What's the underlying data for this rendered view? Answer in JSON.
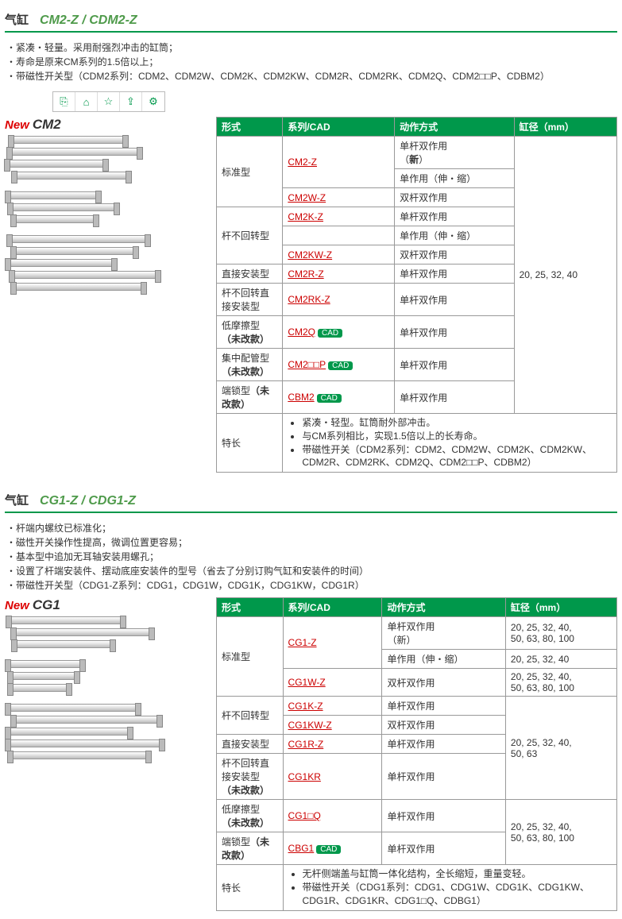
{
  "sections": [
    {
      "title_label": "气缸",
      "title_model": "CM2-Z / CDM2-Z",
      "bullets": [
        "・紧凑・轻量。采用耐强烈冲击的缸筒；",
        "・寿命是原来CM系列的1.5倍以上；",
        "・带磁性开关型（CDM2系列：CDM2、CDM2W、CDM2K、CDM2KW、CDM2R、CDM2RK、CDM2Q、CDM2□□P、CDBM2）"
      ],
      "img_label_new": "New",
      "img_label_tag": "CM2",
      "headers": [
        "形式",
        "系列/CAD",
        "动作方式",
        "缸径（mm）"
      ],
      "bore_span": "20, 25, 32, 40",
      "rows": [
        {
          "type": "标准型",
          "type_rowspan": 3,
          "series": "CM2-Z",
          "link": true,
          "cad": false,
          "action": "单杆双作用<br>（<b>新</b>）",
          "action_rowspan": 1
        },
        {
          "series": "",
          "action": "单作用（伸・缩）"
        },
        {
          "series": "CM2W-Z",
          "link": true,
          "cad": false,
          "action": "双杆双作用"
        },
        {
          "type": "杆不回转型",
          "type_rowspan": 3,
          "series": "CM2K-Z",
          "link": true,
          "cad": false,
          "action": "单杆双作用"
        },
        {
          "series": "",
          "action": "单作用（伸・缩）"
        },
        {
          "series": "CM2KW-Z",
          "link": true,
          "cad": false,
          "action": "双杆双作用"
        },
        {
          "type": "直接安装型",
          "type_rowspan": 1,
          "series": "CM2R-Z",
          "link": true,
          "cad": false,
          "action": "单杆双作用"
        },
        {
          "type": "杆不回转直接安装型",
          "type_rowspan": 1,
          "series": "CM2RK-Z",
          "link": true,
          "cad": false,
          "action": "单杆双作用"
        },
        {
          "type": "低摩擦型<b>（未改款）</b>",
          "type_rowspan": 1,
          "series": "CM2Q",
          "link": true,
          "cad": true,
          "action": "单杆双作用"
        },
        {
          "type": "集中配管型<b>（未改款）</b>",
          "type_rowspan": 1,
          "series": "CM2□□P",
          "link": true,
          "cad": true,
          "action": "单杆双作用"
        },
        {
          "type": "端锁型<b>（未改款）</b>",
          "type_rowspan": 1,
          "series": "CBM2",
          "link": true,
          "cad": true,
          "action": "单杆双作用"
        }
      ],
      "features_label": "特长",
      "features": [
        "紧凑・轻型。缸筒耐外部冲击。",
        "与CM系列相比，实现1.5倍以上的长寿命。",
        "带磁性开关（CDM2系列：CDM2、CDM2W、CDM2K、CDM2KW、CDM2R、CDM2RK、CDM2Q、CDM2□□P、CDBM2）"
      ]
    },
    {
      "title_label": "气缸",
      "title_model": "CG1-Z / CDG1-Z",
      "bullets": [
        "・杆端内螺纹已标准化；",
        "・磁性开关操作性提高，微调位置更容易；",
        "・基本型中追加无耳轴安装用螺孔；",
        "・设置了杆端安装件、摆动底座安装件的型号（省去了分别订购气缸和安装件的时间）",
        "・带磁性开关型（CDG1-Z系列：CDG1，CDG1W，CDG1K，CDG1KW，CDG1R）"
      ],
      "img_label_new": "New",
      "img_label_tag": "CG1",
      "headers": [
        "形式",
        "系列/CAD",
        "动作方式",
        "缸径（mm）"
      ],
      "rows": [
        {
          "type": "标准型",
          "type_rowspan": 3,
          "series": "CG1-Z",
          "link": true,
          "cad": false,
          "action": "单杆双作用<br>（新）",
          "bore": "20, 25, 32, 40,<br>50, 63, 80, 100"
        },
        {
          "series": "",
          "action": "单作用（伸・缩）",
          "bore": "20, 25, 32, 40"
        },
        {
          "series": "CG1W-Z",
          "link": true,
          "cad": false,
          "action": "双杆双作用",
          "bore": "20, 25, 32, 40,<br>50, 63, 80, 100"
        },
        {
          "type": "杆不回转型",
          "type_rowspan": 2,
          "series": "CG1K-Z",
          "link": true,
          "cad": false,
          "action": "单杆双作用",
          "bore": "20, 25, 32, 40,<br>50, 63",
          "bore_rowspan": 4
        },
        {
          "series": "CG1KW-Z",
          "link": true,
          "cad": false,
          "action": "双杆双作用"
        },
        {
          "type": "直接安装型",
          "type_rowspan": 1,
          "series": "CG1R-Z",
          "link": true,
          "cad": false,
          "action": "单杆双作用"
        },
        {
          "type": "杆不回转直接安装型<br><b>（未改款）</b>",
          "type_rowspan": 1,
          "series": "CG1KR",
          "link": true,
          "cad": false,
          "action": "单杆双作用"
        },
        {
          "type": "低摩擦型<b>（未改款）</b>",
          "type_rowspan": 1,
          "series": "CG1□Q",
          "link": true,
          "cad": false,
          "action": "单杆双作用",
          "bore": "20, 25, 32, 40,<br>50, 63, 80, 100",
          "bore_rowspan": 2
        },
        {
          "type": "端锁型<b>（未改款）</b>",
          "type_rowspan": 1,
          "series": "CBG1",
          "link": true,
          "cad": true,
          "action": "单杆双作用"
        }
      ],
      "features_label": "特长",
      "features": [
        "无杆侧端盖与缸筒一体化结构，全长缩短，重量变轻。",
        "带磁性开关（CDG1系列：CDG1、CDG1W、CDG1K、CDG1KW、CDG1R、CDG1KR、CDG1□Q、CDBG1）"
      ]
    }
  ],
  "toolbox_icons": [
    "⎘",
    "⌂",
    "☆",
    "⇪",
    "⚙"
  ]
}
